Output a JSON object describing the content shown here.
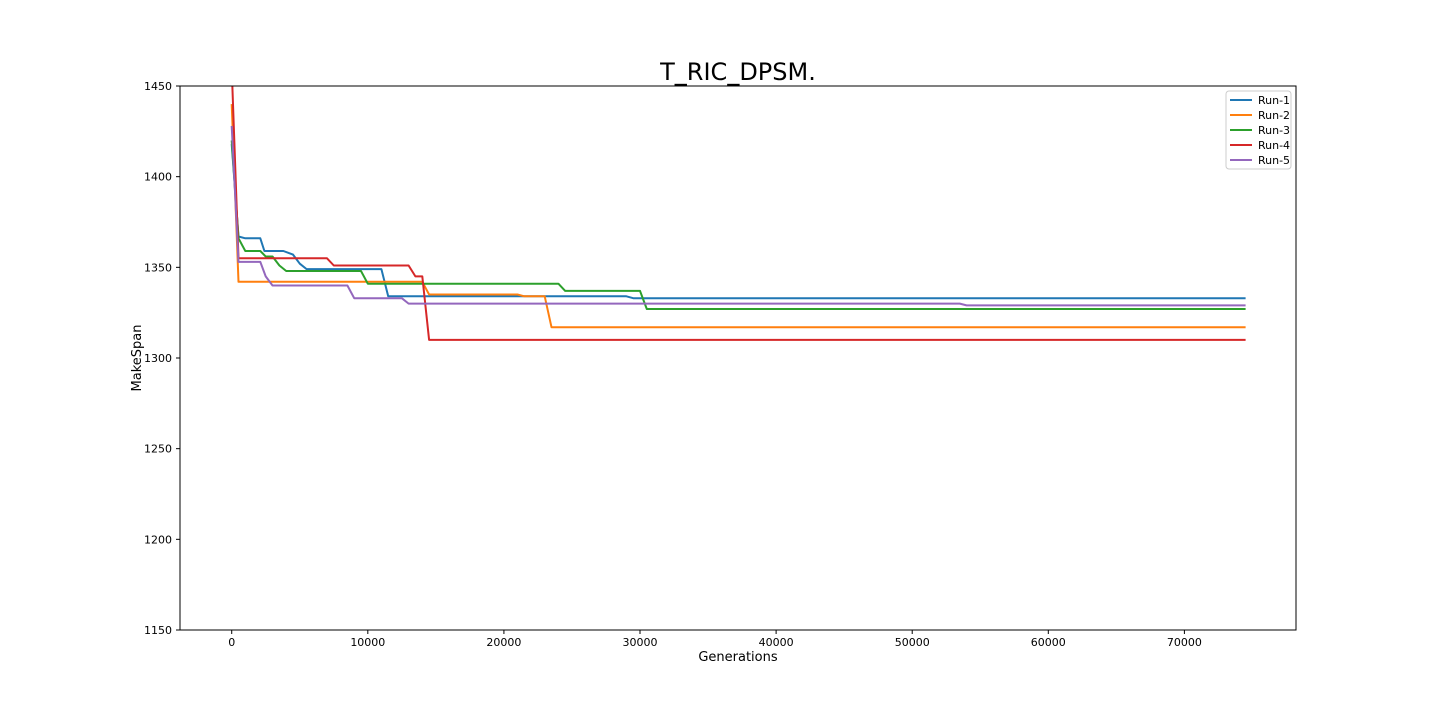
{
  "chart_data": {
    "type": "line",
    "title": "T_RIC_DPSM.",
    "xlabel": "Generations",
    "ylabel": "MakeSpan",
    "xlim": [
      -3800,
      78200
    ],
    "ylim": [
      1150,
      1450
    ],
    "xticks": [
      0,
      10000,
      20000,
      30000,
      40000,
      50000,
      60000,
      70000
    ],
    "yticks": [
      1150,
      1200,
      1250,
      1300,
      1350,
      1400,
      1450
    ],
    "grid": false,
    "legend_position": "top-right",
    "series": [
      {
        "name": "Run-1",
        "color": "#1f77b4",
        "points": [
          [
            0,
            1418
          ],
          [
            500,
            1367
          ],
          [
            1000,
            1366
          ],
          [
            2100,
            1366
          ],
          [
            2400,
            1359
          ],
          [
            3800,
            1359
          ],
          [
            4500,
            1357
          ],
          [
            5000,
            1352
          ],
          [
            5500,
            1349
          ],
          [
            11000,
            1349
          ],
          [
            11500,
            1334
          ],
          [
            29000,
            1334
          ],
          [
            29500,
            1333
          ],
          [
            74500,
            1333
          ]
        ]
      },
      {
        "name": "Run-2",
        "color": "#ff7f0e",
        "points": [
          [
            0,
            1440
          ],
          [
            500,
            1342
          ],
          [
            14000,
            1342
          ],
          [
            14500,
            1335
          ],
          [
            21000,
            1335
          ],
          [
            21500,
            1334
          ],
          [
            23000,
            1334
          ],
          [
            23500,
            1317
          ],
          [
            74500,
            1317
          ]
        ]
      },
      {
        "name": "Run-3",
        "color": "#2ca02c",
        "points": [
          [
            0,
            1420
          ],
          [
            500,
            1366
          ],
          [
            1000,
            1359
          ],
          [
            2100,
            1359
          ],
          [
            2500,
            1356
          ],
          [
            3000,
            1356
          ],
          [
            3500,
            1351
          ],
          [
            4000,
            1348
          ],
          [
            9500,
            1348
          ],
          [
            10000,
            1341
          ],
          [
            24000,
            1341
          ],
          [
            24500,
            1337
          ],
          [
            30000,
            1337
          ],
          [
            30500,
            1327
          ],
          [
            74500,
            1327
          ]
        ]
      },
      {
        "name": "Run-4",
        "color": "#d62728",
        "points": [
          [
            0,
            1460
          ],
          [
            500,
            1355
          ],
          [
            7000,
            1355
          ],
          [
            7500,
            1351
          ],
          [
            13000,
            1351
          ],
          [
            13500,
            1345
          ],
          [
            14000,
            1345
          ],
          [
            14500,
            1310
          ],
          [
            74500,
            1310
          ]
        ]
      },
      {
        "name": "Run-5",
        "color": "#9467bd",
        "points": [
          [
            0,
            1428
          ],
          [
            500,
            1353
          ],
          [
            2100,
            1353
          ],
          [
            2500,
            1345
          ],
          [
            3000,
            1340
          ],
          [
            8500,
            1340
          ],
          [
            9000,
            1333
          ],
          [
            12500,
            1333
          ],
          [
            13000,
            1330
          ],
          [
            53500,
            1330
          ],
          [
            54000,
            1329
          ],
          [
            74500,
            1329
          ]
        ]
      }
    ]
  }
}
